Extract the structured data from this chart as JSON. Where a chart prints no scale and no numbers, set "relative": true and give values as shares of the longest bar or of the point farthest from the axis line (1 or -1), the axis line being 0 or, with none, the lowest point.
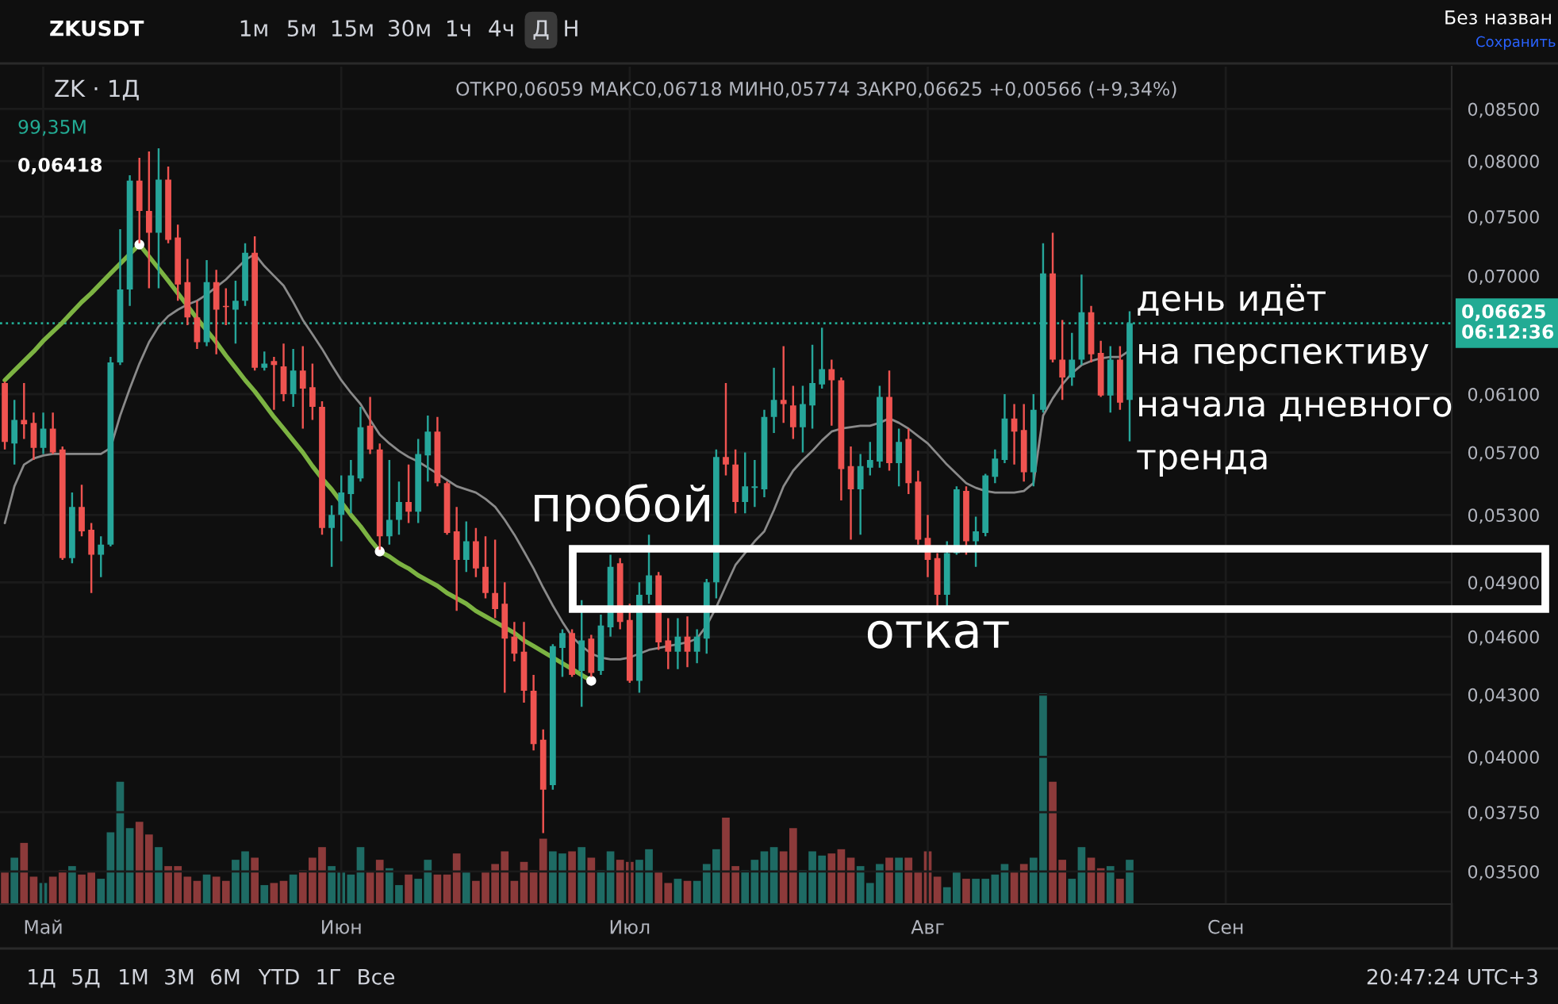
{
  "chart_data": [
    {
      "type": "candlestick",
      "title": "ZK · 1Д",
      "subtitle": "ОТКР0,06059 МАКС0,06718 МИН0,05774 ЗАКР0,06625 +0,00566 (+9,34%)",
      "categories": [
        null,
        null,
        null,
        null,
        "Май",
        null,
        null,
        null,
        null,
        null,
        null,
        null,
        null,
        null,
        null,
        null,
        null,
        null,
        null,
        null,
        null,
        null,
        null,
        null,
        null,
        null,
        null,
        null,
        null,
        null,
        null,
        null,
        null,
        null,
        null,
        "Июн",
        null,
        null,
        null,
        null,
        null,
        null,
        null,
        null,
        null,
        null,
        null,
        null,
        null,
        null,
        null,
        null,
        null,
        null,
        null,
        null,
        null,
        null,
        null,
        null,
        null,
        null,
        null,
        null,
        null,
        "Июл",
        null,
        null,
        null,
        null,
        null,
        null,
        null,
        null,
        null,
        null,
        null,
        null,
        null,
        null,
        null,
        null,
        null,
        null,
        null,
        null,
        null,
        null,
        null,
        null,
        null,
        null,
        null,
        null,
        null,
        null,
        "Авг",
        null,
        null,
        null,
        null,
        null,
        null,
        null,
        null,
        null,
        null,
        null,
        null,
        null,
        null,
        null,
        null,
        null,
        null,
        null,
        null,
        null,
        null,
        null,
        null,
        null,
        null,
        null,
        null,
        null,
        null,
        "Сен",
        null,
        null,
        null,
        null,
        null,
        null,
        null,
        null,
        null,
        null,
        null,
        null,
        null,
        null,
        null,
        null,
        null,
        null,
        null,
        null,
        null,
        null,
        null
      ],
      "ohlc": [
        [
          0.0618,
          0.0619,
          0.0572,
          0.0577
        ],
        [
          0.0576,
          0.0606,
          0.0562,
          0.0592
        ],
        [
          0.0592,
          0.0618,
          0.0579,
          0.0589
        ],
        [
          0.059,
          0.0597,
          0.0565,
          0.0573
        ],
        [
          0.0573,
          0.0597,
          0.0569,
          0.0586
        ],
        [
          0.0586,
          0.0597,
          0.0569,
          0.057
        ],
        [
          0.0572,
          0.0574,
          0.0503,
          0.0504
        ],
        [
          0.0504,
          0.0544,
          0.0501,
          0.0535
        ],
        [
          0.0535,
          0.0549,
          0.0517,
          0.052
        ],
        [
          0.0521,
          0.0525,
          0.0484,
          0.0506
        ],
        [
          0.0506,
          0.0517,
          0.0493,
          0.0512
        ],
        [
          0.0512,
          0.0637,
          0.0511,
          0.0633
        ],
        [
          0.0633,
          0.0739,
          0.0631,
          0.0689
        ],
        [
          0.0689,
          0.0787,
          0.0676,
          0.0782
        ],
        [
          0.0782,
          0.0803,
          0.0727,
          0.0755
        ],
        [
          0.0755,
          0.0809,
          0.069,
          0.0736
        ],
        [
          0.0736,
          0.0812,
          0.069,
          0.0783
        ],
        [
          0.0783,
          0.0795,
          0.0727,
          0.073
        ],
        [
          0.0732,
          0.0743,
          0.068,
          0.0693
        ],
        [
          0.0695,
          0.0714,
          0.0661,
          0.0667
        ],
        [
          0.0667,
          0.068,
          0.0643,
          0.0648
        ],
        [
          0.0648,
          0.0713,
          0.0645,
          0.0695
        ],
        [
          0.0695,
          0.0705,
          0.0639,
          0.0673
        ],
        [
          0.0676,
          0.069,
          0.0661,
          0.0675
        ],
        [
          0.0673,
          0.0696,
          0.0647,
          0.068
        ],
        [
          0.068,
          0.0727,
          0.0676,
          0.0719
        ],
        [
          0.0719,
          0.0733,
          0.0627,
          0.0629
        ],
        [
          0.0629,
          0.0641,
          0.0627,
          0.0632
        ],
        [
          0.0634,
          0.0637,
          0.0599,
          0.0631
        ],
        [
          0.063,
          0.0647,
          0.0605,
          0.061
        ],
        [
          0.061,
          0.0643,
          0.0601,
          0.0627
        ],
        [
          0.0627,
          0.0645,
          0.0586,
          0.0614
        ],
        [
          0.0615,
          0.0632,
          0.0592,
          0.0601
        ],
        [
          0.0601,
          0.0605,
          0.0518,
          0.0522
        ],
        [
          0.0522,
          0.0536,
          0.0499,
          0.053
        ],
        [
          0.053,
          0.0555,
          0.0514,
          0.0544
        ],
        [
          0.0543,
          0.0565,
          0.0531,
          0.0555
        ],
        [
          0.0553,
          0.0601,
          0.0551,
          0.0587
        ],
        [
          0.0588,
          0.0608,
          0.0569,
          0.0572
        ],
        [
          0.0572,
          0.0576,
          0.0509,
          0.0517
        ],
        [
          0.0517,
          0.0565,
          0.0512,
          0.0527
        ],
        [
          0.0527,
          0.0551,
          0.0518,
          0.0538
        ],
        [
          0.0538,
          0.0562,
          0.0525,
          0.0532
        ],
        [
          0.0532,
          0.0579,
          0.0525,
          0.0569
        ],
        [
          0.0568,
          0.0595,
          0.0551,
          0.0584
        ],
        [
          0.0584,
          0.0594,
          0.0548,
          0.055
        ],
        [
          0.055,
          0.0551,
          0.0518,
          0.0519
        ],
        [
          0.052,
          0.0535,
          0.0474,
          0.0503
        ],
        [
          0.0503,
          0.0526,
          0.0496,
          0.0514
        ],
        [
          0.0514,
          0.0522,
          0.0493,
          0.0498
        ],
        [
          0.0499,
          0.0517,
          0.0481,
          0.0484
        ],
        [
          0.0484,
          0.0515,
          0.047,
          0.0475
        ],
        [
          0.0478,
          0.049,
          0.0431,
          0.0459
        ],
        [
          0.046,
          0.0468,
          0.0447,
          0.0451
        ],
        [
          0.0452,
          0.0468,
          0.0426,
          0.0432
        ],
        [
          0.0432,
          0.044,
          0.0403,
          0.0406
        ],
        [
          0.0408,
          0.0413,
          0.0366,
          0.0385
        ],
        [
          0.0387,
          0.0456,
          0.0385,
          0.0455
        ],
        [
          0.0454,
          0.0464,
          0.0439,
          0.0462
        ],
        [
          0.0462,
          0.0464,
          0.0439,
          0.044
        ],
        [
          0.0442,
          0.048,
          0.0424,
          0.0458
        ],
        [
          0.0459,
          0.0461,
          0.0439,
          0.0441
        ],
        [
          0.0442,
          0.0472,
          0.044,
          0.0466
        ],
        [
          0.0465,
          0.0506,
          0.046,
          0.0499
        ],
        [
          0.0501,
          0.0504,
          0.0464,
          0.0468
        ],
        [
          0.0469,
          0.0478,
          0.0436,
          0.0437
        ],
        [
          0.0437,
          0.049,
          0.0431,
          0.0483
        ],
        [
          0.0483,
          0.0518,
          0.0478,
          0.0494
        ],
        [
          0.0494,
          0.0496,
          0.0453,
          0.0457
        ],
        [
          0.0458,
          0.047,
          0.0443,
          0.0452
        ],
        [
          0.0452,
          0.047,
          0.0443,
          0.046
        ],
        [
          0.046,
          0.0471,
          0.0444,
          0.0452
        ],
        [
          0.0452,
          0.0464,
          0.0446,
          0.046
        ],
        [
          0.0459,
          0.0492,
          0.0451,
          0.049
        ],
        [
          0.049,
          0.0572,
          0.0481,
          0.0567
        ],
        [
          0.0567,
          0.0618,
          0.0555,
          0.0562
        ],
        [
          0.0562,
          0.0572,
          0.0531,
          0.0538
        ],
        [
          0.0538,
          0.057,
          0.0531,
          0.0548
        ],
        [
          0.0547,
          0.0565,
          0.0535,
          0.0548
        ],
        [
          0.0546,
          0.0599,
          0.0541,
          0.0594
        ],
        [
          0.0594,
          0.0629,
          0.0583,
          0.0606
        ],
        [
          0.0606,
          0.0645,
          0.059,
          0.0603
        ],
        [
          0.0602,
          0.0616,
          0.0579,
          0.0587
        ],
        [
          0.0587,
          0.0616,
          0.057,
          0.0603
        ],
        [
          0.0602,
          0.0646,
          0.0586,
          0.0618
        ],
        [
          0.0617,
          0.0659,
          0.0614,
          0.0628
        ],
        [
          0.0628,
          0.0635,
          0.0588,
          0.062
        ],
        [
          0.062,
          0.0622,
          0.0539,
          0.0559
        ],
        [
          0.0561,
          0.0574,
          0.0515,
          0.0546
        ],
        [
          0.0546,
          0.0569,
          0.0518,
          0.0561
        ],
        [
          0.056,
          0.0577,
          0.0555,
          0.0565
        ],
        [
          0.0564,
          0.0616,
          0.056,
          0.0608
        ],
        [
          0.0608,
          0.0627,
          0.0558,
          0.0563
        ],
        [
          0.0563,
          0.0586,
          0.0548,
          0.0577
        ],
        [
          0.0579,
          0.0586,
          0.0543,
          0.055
        ],
        [
          0.0551,
          0.0558,
          0.0512,
          0.0515
        ],
        [
          0.0516,
          0.053,
          0.0493,
          0.0503
        ],
        [
          0.0504,
          0.0507,
          0.0476,
          0.0483
        ],
        [
          0.0483,
          0.0514,
          0.0476,
          0.0507
        ],
        [
          0.0507,
          0.0548,
          0.0506,
          0.0546
        ],
        [
          0.0545,
          0.0548,
          0.0506,
          0.0514
        ],
        [
          0.0514,
          0.0529,
          0.0499,
          0.052
        ],
        [
          0.0519,
          0.0556,
          0.0517,
          0.0555
        ],
        [
          0.0554,
          0.0572,
          0.055,
          0.0566
        ],
        [
          0.0565,
          0.061,
          0.0563,
          0.0593
        ],
        [
          0.0593,
          0.0603,
          0.0562,
          0.0584
        ],
        [
          0.0585,
          0.0603,
          0.0551,
          0.0557
        ],
        [
          0.0557,
          0.061,
          0.0548,
          0.0599
        ],
        [
          0.0599,
          0.0727,
          0.0597,
          0.0702
        ],
        [
          0.0702,
          0.0736,
          0.0633,
          0.0635
        ],
        [
          0.0635,
          0.0665,
          0.0606,
          0.0622
        ],
        [
          0.0622,
          0.0655,
          0.0616,
          0.0635
        ],
        [
          0.0635,
          0.0701,
          0.0631,
          0.0671
        ],
        [
          0.0671,
          0.0676,
          0.0633,
          0.0639
        ],
        [
          0.064,
          0.0649,
          0.0608,
          0.0609
        ],
        [
          0.0609,
          0.0645,
          0.0597,
          0.0635
        ],
        [
          0.0635,
          0.0645,
          0.0599,
          0.0604
        ],
        [
          0.06059,
          0.06718,
          0.05774,
          0.06625
        ],
        null,
        null,
        null,
        null,
        null,
        null,
        null,
        null,
        null,
        null,
        null,
        null,
        null,
        null,
        null,
        null,
        null,
        null,
        null,
        null,
        null,
        null,
        null,
        null,
        null,
        null,
        null,
        null,
        null,
        null,
        null,
        null,
        null
      ],
      "colors": [
        "#ef5350",
        "#26a69a",
        "#ef5350",
        "#ef5350",
        "#26a69a",
        "#ef5350",
        "#ef5350",
        "#26a69a",
        "#ef5350",
        "#ef5350",
        "#26a69a",
        "#26a69a",
        "#26a69a",
        "#26a69a",
        "#ef5350",
        "#ef5350",
        "#26a69a",
        "#ef5350",
        "#ef5350",
        "#ef5350",
        "#ef5350",
        "#26a69a",
        "#ef5350",
        "#ef5350",
        "#26a69a",
        "#26a69a",
        "#ef5350",
        "#26a69a",
        "#ef5350",
        "#ef5350",
        "#26a69a",
        "#ef5350",
        "#ef5350",
        "#ef5350",
        "#26a69a",
        "#26a69a",
        "#26a69a",
        "#26a69a",
        "#ef5350",
        "#ef5350",
        "#26a69a",
        "#26a69a",
        "#ef5350",
        "#26a69a",
        "#26a69a",
        "#ef5350",
        "#ef5350",
        "#ef5350",
        "#26a69a",
        "#ef5350",
        "#ef5350",
        "#ef5350",
        "#ef5350",
        "#ef5350",
        "#ef5350",
        "#ef5350",
        "#ef5350",
        "#26a69a",
        "#26a69a",
        "#ef5350",
        "#26a69a",
        "#ef5350",
        "#26a69a",
        "#26a69a",
        "#ef5350",
        "#ef5350",
        "#26a69a",
        "#26a69a",
        "#ef5350",
        "#ef5350",
        "#26a69a",
        "#ef5350",
        "#26a69a",
        "#26a69a",
        "#26a69a",
        "#ef5350",
        "#ef5350",
        "#26a69a",
        "#26a69a",
        "#26a69a",
        "#26a69a",
        "#ef5350",
        "#ef5350",
        "#26a69a",
        "#26a69a",
        "#26a69a",
        "#ef5350",
        "#ef5350",
        "#ef5350",
        "#26a69a",
        "#26a69a",
        "#26a69a",
        "#ef5350",
        "#26a69a",
        "#ef5350",
        "#ef5350",
        "#ef5350",
        "#ef5350",
        "#26a69a",
        "#26a69a",
        "#ef5350",
        "#26a69a",
        "#26a69a",
        "#26a69a",
        "#26a69a",
        "#ef5350",
        "#ef5350",
        "#26a69a",
        "#26a69a",
        "#ef5350",
        "#ef5350",
        "#26a69a",
        "#26a69a",
        "#ef5350",
        "#ef5350",
        "#26a69a",
        "#ef5350",
        "#26a69a",
        null,
        null,
        null,
        null,
        null,
        null,
        null,
        null,
        null,
        null,
        null,
        null,
        null,
        null,
        null,
        null,
        null,
        null,
        null,
        null,
        null,
        null,
        null,
        null,
        null,
        null,
        null,
        null,
        null,
        null,
        null,
        null,
        null
      ],
      "series": [
        {
          "type": "line",
          "color": "#8a8a8a",
          "values": [
            0.0525,
            0.0548,
            0.0562,
            0.0566,
            0.0568,
            0.0569,
            0.0569,
            0.0569,
            0.0569,
            0.0569,
            0.0569,
            0.0573,
            0.0595,
            0.0614,
            0.0632,
            0.0648,
            0.066,
            0.0668,
            0.0673,
            0.0677,
            0.068,
            0.0685,
            0.0691,
            0.0697,
            0.0705,
            0.0713,
            0.0718,
            0.0708,
            0.07,
            0.0692,
            0.0679,
            0.0665,
            0.0654,
            0.0643,
            0.0631,
            0.062,
            0.0611,
            0.0603,
            0.0592,
            0.0582,
            0.0576,
            0.0571,
            0.0567,
            0.0564,
            0.056,
            0.0556,
            0.0552,
            0.0548,
            0.0546,
            0.0544,
            0.054,
            0.0535,
            0.0527,
            0.0518,
            0.0508,
            0.0498,
            0.0487,
            0.0477,
            0.0468,
            0.046,
            0.0455,
            0.0451,
            0.0449,
            0.0448,
            0.0448,
            0.0449,
            0.0451,
            0.0453,
            0.0454,
            0.0455,
            0.0456,
            0.0457,
            0.0459,
            0.0466,
            0.0476,
            0.0488,
            0.05,
            0.0507,
            0.0514,
            0.052,
            0.0533,
            0.0548,
            0.0558,
            0.0565,
            0.0571,
            0.0578,
            0.0584,
            0.0586,
            0.0587,
            0.0588,
            0.0588,
            0.059,
            0.0593,
            0.059,
            0.0586,
            0.0581,
            0.0576,
            0.0569,
            0.0562,
            0.0556,
            0.055,
            0.0547,
            0.0545,
            0.0544,
            0.0544,
            0.0544,
            0.0545,
            0.055,
            0.0595,
            0.0607,
            0.0617,
            0.0625,
            0.0631,
            0.0634,
            0.0636,
            0.0637,
            0.0637,
            0.06418,
            null,
            null,
            null,
            null,
            null,
            null,
            null,
            null,
            null,
            null,
            null,
            null,
            null,
            null,
            null,
            null,
            null,
            null,
            null,
            null,
            null,
            null,
            null,
            null,
            null,
            null,
            null,
            null,
            null,
            null,
            null,
            null,
            null
          ]
        },
        {
          "type": "line",
          "color": "#7cb342",
          "values": [
            0.062,
            0.0627,
            0.0634,
            0.0641,
            0.0649,
            0.0656,
            0.0663,
            0.0671,
            0.0679,
            0.0686,
            0.0694,
            0.0702,
            0.071,
            0.0718,
            0.0726,
            0.0716,
            0.0706,
            0.0696,
            0.0686,
            0.0676,
            0.0666,
            0.0657,
            0.0648,
            0.0638,
            0.0629,
            0.062,
            0.0612,
            0.0603,
            0.0594,
            0.0586,
            0.0578,
            0.057,
            0.0561,
            0.0553,
            0.0546,
            0.0538,
            0.053,
            0.0523,
            0.0515,
            0.0508,
            0.0505,
            0.0501,
            0.0498,
            0.0494,
            0.0491,
            0.0488,
            0.0484,
            0.0481,
            0.0478,
            0.0474,
            0.0471,
            0.0468,
            0.0465,
            0.0462,
            0.0458,
            0.0455,
            0.0452,
            0.0449,
            0.0446,
            0.0443,
            0.044,
            0.0437,
            null,
            null,
            null,
            null,
            null,
            null,
            null,
            null,
            null,
            null,
            null,
            null,
            null,
            null,
            null,
            null,
            null,
            null,
            null,
            null,
            null,
            null,
            null,
            null,
            null,
            null,
            null,
            null,
            null,
            null,
            null,
            null,
            null,
            null,
            null,
            null,
            null,
            null,
            null,
            null,
            null,
            null,
            null,
            null,
            null,
            null,
            null,
            null,
            null,
            null,
            null,
            null,
            null,
            null,
            null,
            null,
            null,
            null,
            null,
            null,
            null,
            null,
            null,
            null,
            null,
            null,
            null,
            null,
            null,
            null,
            null,
            null,
            null,
            null,
            null,
            null,
            null,
            null,
            null,
            null,
            null,
            null,
            null,
            null,
            null,
            null,
            null,
            null,
            null
          ]
        },
        {
          "type": "scatter",
          "color": "#ffffff",
          "marker": "circle",
          "values": [
            null,
            null,
            null,
            null,
            null,
            null,
            null,
            null,
            null,
            null,
            null,
            null,
            null,
            null,
            0.0726,
            null,
            null,
            null,
            null,
            null,
            null,
            null,
            null,
            null,
            null,
            null,
            null,
            null,
            null,
            null,
            null,
            null,
            null,
            null,
            null,
            null,
            null,
            null,
            null,
            0.0508,
            null,
            null,
            null,
            null,
            null,
            null,
            null,
            null,
            null,
            null,
            null,
            null,
            null,
            null,
            null,
            null,
            null,
            null,
            null,
            null,
            null,
            0.0437,
            null,
            null,
            null,
            null,
            null,
            null,
            null,
            null,
            null,
            null,
            null,
            null,
            null,
            null,
            null,
            null,
            null,
            null,
            null,
            null,
            null,
            null,
            null,
            null,
            null,
            null,
            null,
            null,
            null,
            null,
            null,
            null,
            null,
            null,
            null,
            null,
            null,
            null,
            null,
            null,
            null,
            null,
            null,
            null,
            null,
            null,
            null,
            null,
            null,
            null,
            null,
            null,
            null,
            null,
            null,
            null,
            null,
            null,
            null,
            null,
            null,
            null,
            null,
            null,
            null,
            null,
            null,
            null,
            null,
            null,
            null,
            null,
            null,
            null,
            null,
            null,
            null,
            null,
            null,
            null,
            null,
            null,
            null,
            null,
            null,
            null,
            null,
            null,
            null
          ]
        }
      ],
      "ylim": [
        0.0337,
        0.0893
      ],
      "yticks": [
        {
          "value": 0.085,
          "label": "0,08500"
        },
        {
          "value": 0.08,
          "label": "0,08000"
        },
        {
          "value": 0.075,
          "label": "0,07500"
        },
        {
          "value": 0.07,
          "label": "0,07000"
        },
        {
          "value": 0.061,
          "label": "0,06100"
        },
        {
          "value": 0.057,
          "label": "0,05700"
        },
        {
          "value": 0.053,
          "label": "0,05300"
        },
        {
          "value": 0.049,
          "label": "0,04900"
        },
        {
          "value": 0.046,
          "label": "0,04600"
        },
        {
          "value": 0.043,
          "label": "0,04300"
        },
        {
          "value": 0.04,
          "label": "0,04000"
        },
        {
          "value": 0.0375,
          "label": "0,03750"
        },
        {
          "value": 0.035,
          "label": "0,03500"
        }
      ],
      "log": true,
      "grid": true,
      "ref_lines": [
        {
          "axis": "y",
          "value": 0.06625,
          "label": "0,06625\n06:12:36",
          "color": "#22ab94",
          "line_style": "dotted"
        }
      ],
      "annotations": [
        "ZKUSDT",
        "1м",
        "5м",
        "15м",
        "30м",
        "1ч",
        "4ч",
        "Д",
        "Н",
        "Без назван",
        "Сохранить",
        "1Д",
        "5Д",
        "1М",
        "3М",
        "6М",
        "YTD",
        "1Г",
        "Все",
        "20:47:24 UTC+3",
        "0,06418",
        "пробой",
        "откат",
        "день идёт\nна перспективу\nначала дневного\nтренда"
      ]
    },
    {
      "type": "bar",
      "relative": true,
      "categories": [
        null,
        null,
        null,
        null,
        null,
        null,
        null,
        null,
        null,
        null,
        null,
        null,
        null,
        null,
        null,
        null,
        null,
        null,
        null,
        null,
        null,
        null,
        null,
        null,
        null,
        null,
        null,
        null,
        null,
        null,
        null,
        null,
        null,
        null,
        null,
        null,
        null,
        null,
        null,
        null,
        null,
        null,
        null,
        null,
        null,
        null,
        null,
        null,
        null,
        null,
        null,
        null,
        null,
        null,
        null,
        null,
        null,
        null,
        null,
        null,
        null,
        null,
        null,
        null,
        null,
        null,
        null,
        null,
        null,
        null,
        null,
        null,
        null,
        null,
        null,
        null,
        null,
        null,
        null,
        null,
        null,
        null,
        null,
        null,
        null,
        null,
        null,
        null,
        null,
        null,
        null,
        null,
        null,
        null,
        null,
        null,
        null,
        null,
        null,
        null,
        null,
        null,
        null,
        null,
        null,
        null,
        null,
        null,
        null,
        null,
        null,
        null,
        null,
        null,
        null,
        null,
        null,
        null,
        null,
        null,
        null,
        null,
        null,
        null,
        null,
        null,
        null,
        null,
        null,
        null,
        null,
        null,
        null,
        null,
        null,
        null,
        null,
        null,
        null,
        null,
        null,
        null,
        null,
        null,
        null,
        null,
        null,
        null,
        null,
        null,
        null
      ],
      "values": [
        0.15,
        0.22,
        0.29,
        0.13,
        0.1,
        0.13,
        0.16,
        0.18,
        0.14,
        0.15,
        0.12,
        0.34,
        0.58,
        0.36,
        0.39,
        0.33,
        0.27,
        0.18,
        0.18,
        0.13,
        0.11,
        0.14,
        0.13,
        0.11,
        0.21,
        0.25,
        0.22,
        0.09,
        0.1,
        0.11,
        0.14,
        0.16,
        0.22,
        0.27,
        0.18,
        0.15,
        0.14,
        0.27,
        0.15,
        0.21,
        0.17,
        0.09,
        0.14,
        0.12,
        0.21,
        0.14,
        0.14,
        0.24,
        0.15,
        0.11,
        0.15,
        0.19,
        0.25,
        0.11,
        0.2,
        0.16,
        0.31,
        0.25,
        0.24,
        0.25,
        0.27,
        0.22,
        0.16,
        0.25,
        0.21,
        0.2,
        0.21,
        0.26,
        0.15,
        0.1,
        0.12,
        0.11,
        0.11,
        0.19,
        0.26,
        0.41,
        0.18,
        0.16,
        0.21,
        0.25,
        0.27,
        0.25,
        0.36,
        0.16,
        0.25,
        0.23,
        0.24,
        0.26,
        0.22,
        0.18,
        0.1,
        0.19,
        0.22,
        0.22,
        0.22,
        0.15,
        0.25,
        0.13,
        0.08,
        0.15,
        0.12,
        0.12,
        0.12,
        0.14,
        0.19,
        0.15,
        0.19,
        0.22,
        1,
        0.58,
        0.21,
        0.12,
        0.27,
        0.22,
        0.17,
        0.18,
        0.12,
        0.21,
        null,
        null,
        null,
        null,
        null,
        null,
        null,
        null,
        null,
        null,
        null,
        null,
        null,
        null,
        null,
        null,
        null,
        null,
        null,
        null,
        null,
        null,
        null,
        null,
        null,
        null,
        null,
        null,
        null,
        null,
        null,
        null,
        null
      ],
      "colors": [
        "#8c3a3a",
        "#1e6b64",
        "#8c3a3a",
        "#8c3a3a",
        "#1e6b64",
        "#8c3a3a",
        "#8c3a3a",
        "#1e6b64",
        "#8c3a3a",
        "#8c3a3a",
        "#1e6b64",
        "#1e6b64",
        "#1e6b64",
        "#1e6b64",
        "#8c3a3a",
        "#8c3a3a",
        "#1e6b64",
        "#8c3a3a",
        "#8c3a3a",
        "#8c3a3a",
        "#8c3a3a",
        "#1e6b64",
        "#8c3a3a",
        "#8c3a3a",
        "#1e6b64",
        "#1e6b64",
        "#8c3a3a",
        "#1e6b64",
        "#8c3a3a",
        "#8c3a3a",
        "#1e6b64",
        "#8c3a3a",
        "#8c3a3a",
        "#8c3a3a",
        "#1e6b64",
        "#1e6b64",
        "#1e6b64",
        "#1e6b64",
        "#8c3a3a",
        "#8c3a3a",
        "#1e6b64",
        "#1e6b64",
        "#8c3a3a",
        "#1e6b64",
        "#1e6b64",
        "#8c3a3a",
        "#8c3a3a",
        "#8c3a3a",
        "#1e6b64",
        "#8c3a3a",
        "#8c3a3a",
        "#8c3a3a",
        "#8c3a3a",
        "#8c3a3a",
        "#8c3a3a",
        "#8c3a3a",
        "#8c3a3a",
        "#1e6b64",
        "#1e6b64",
        "#8c3a3a",
        "#1e6b64",
        "#8c3a3a",
        "#1e6b64",
        "#1e6b64",
        "#8c3a3a",
        "#8c3a3a",
        "#1e6b64",
        "#1e6b64",
        "#8c3a3a",
        "#8c3a3a",
        "#1e6b64",
        "#8c3a3a",
        "#1e6b64",
        "#1e6b64",
        "#1e6b64",
        "#8c3a3a",
        "#8c3a3a",
        "#1e6b64",
        "#1e6b64",
        "#1e6b64",
        "#1e6b64",
        "#8c3a3a",
        "#8c3a3a",
        "#1e6b64",
        "#1e6b64",
        "#1e6b64",
        "#8c3a3a",
        "#8c3a3a",
        "#8c3a3a",
        "#1e6b64",
        "#1e6b64",
        "#1e6b64",
        "#8c3a3a",
        "#1e6b64",
        "#8c3a3a",
        "#8c3a3a",
        "#8c3a3a",
        "#8c3a3a",
        "#1e6b64",
        "#1e6b64",
        "#8c3a3a",
        "#1e6b64",
        "#1e6b64",
        "#1e6b64",
        "#1e6b64",
        "#8c3a3a",
        "#8c3a3a",
        "#1e6b64",
        "#1e6b64",
        "#8c3a3a",
        "#8c3a3a",
        "#1e6b64",
        "#1e6b64",
        "#8c3a3a",
        "#8c3a3a",
        "#1e6b64",
        "#8c3a3a",
        "#1e6b64",
        null,
        null,
        null,
        null,
        null,
        null,
        null,
        null,
        null,
        null,
        null,
        null,
        null,
        null,
        null,
        null,
        null,
        null,
        null,
        null,
        null,
        null,
        null,
        null,
        null,
        null,
        null,
        null,
        null,
        null,
        null,
        null,
        null
      ],
      "annotations": [
        "99,35M"
      ]
    }
  ]
}
